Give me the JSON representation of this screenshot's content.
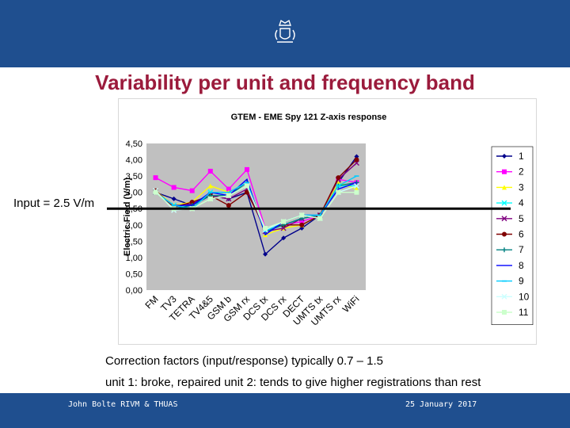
{
  "slide": {
    "title": "Variability per unit and frequency band",
    "input_label": "Input = 2.5 V/m",
    "note1": "Correction factors (input/response) typically 0.7 – 1.5",
    "note2": "unit 1: broke, repaired unit 2: tends to give higher registrations than rest",
    "footer_left": "John Bolte RIVM & THUAS",
    "footer_right": "25 January 2017",
    "colors": {
      "header": "#1f4f8f",
      "title": "#9b1b3c",
      "plot_bg": "#c0c0c0"
    },
    "logo_icon": "crest-icon"
  },
  "chart_data": {
    "type": "line",
    "title": "GTEM - EME Spy 121  Z-axis response",
    "ylabel": "Electric Field (V/m)",
    "xlabel": "",
    "ylim": [
      0,
      4.5
    ],
    "yticks": [
      "0,00",
      "0,50",
      "1,00",
      "1,50",
      "2,00",
      "2,50",
      "3,00",
      "3,50",
      "4,00",
      "4,50"
    ],
    "categories": [
      "FM",
      "TV3",
      "TETRA",
      "TV4&5",
      "GSM b",
      "GSM rx",
      "DCS tx",
      "DCS rx",
      "DECT",
      "UMTS tx",
      "UMTS rx",
      "WiFi"
    ],
    "reference_line": 2.5,
    "grid": false,
    "legend_position": "right",
    "series": [
      {
        "name": "1",
        "color": "#00008b",
        "marker": "diamond",
        "values": [
          3.0,
          2.8,
          2.6,
          2.9,
          2.8,
          3.0,
          1.1,
          1.6,
          1.9,
          2.3,
          3.3,
          4.1
        ]
      },
      {
        "name": "2",
        "color": "#ff00ff",
        "marker": "square",
        "values": [
          3.45,
          3.15,
          3.05,
          3.65,
          3.1,
          3.7,
          1.9,
          2.0,
          2.1,
          2.3,
          3.4,
          3.3
        ]
      },
      {
        "name": "3",
        "color": "#ffff00",
        "marker": "triangle",
        "values": [
          3.05,
          2.6,
          2.7,
          3.2,
          3.0,
          3.3,
          1.7,
          1.9,
          2.0,
          2.3,
          3.3,
          3.1
        ]
      },
      {
        "name": "4",
        "color": "#00ffff",
        "marker": "x",
        "values": [
          3.0,
          2.6,
          2.6,
          3.0,
          2.9,
          3.2,
          1.8,
          2.0,
          2.2,
          2.3,
          3.2,
          3.2
        ]
      },
      {
        "name": "5",
        "color": "#800080",
        "marker": "x",
        "values": [
          3.0,
          2.55,
          2.65,
          2.9,
          2.8,
          3.1,
          1.8,
          1.9,
          2.2,
          2.3,
          3.4,
          3.9
        ]
      },
      {
        "name": "6",
        "color": "#800000",
        "marker": "circle",
        "values": [
          3.05,
          2.55,
          2.7,
          2.9,
          2.6,
          3.0,
          1.9,
          2.0,
          2.0,
          2.3,
          3.45,
          4.0
        ]
      },
      {
        "name": "7",
        "color": "#008080",
        "marker": "plus",
        "values": [
          3.0,
          2.5,
          2.6,
          2.9,
          2.9,
          3.3,
          1.8,
          2.0,
          2.2,
          2.3,
          3.2,
          3.3
        ]
      },
      {
        "name": "8",
        "color": "#0000ff",
        "marker": "none",
        "values": [
          3.0,
          2.6,
          2.6,
          3.0,
          2.9,
          3.4,
          1.7,
          2.1,
          2.3,
          2.3,
          3.1,
          3.3
        ]
      },
      {
        "name": "9",
        "color": "#00ccff",
        "marker": "dash",
        "values": [
          3.0,
          2.6,
          2.5,
          3.0,
          3.0,
          3.3,
          1.8,
          2.1,
          2.3,
          2.3,
          3.2,
          3.5
        ]
      },
      {
        "name": "10",
        "color": "#ccffff",
        "marker": "star",
        "values": [
          3.05,
          2.45,
          2.5,
          2.8,
          2.9,
          3.2,
          1.85,
          2.1,
          2.3,
          2.2,
          3.0,
          3.2
        ]
      },
      {
        "name": "11",
        "color": "#ccffcc",
        "marker": "square",
        "values": [
          3.0,
          2.5,
          2.5,
          2.8,
          2.9,
          3.2,
          1.9,
          2.1,
          2.3,
          2.2,
          3.0,
          3.0
        ]
      }
    ]
  }
}
